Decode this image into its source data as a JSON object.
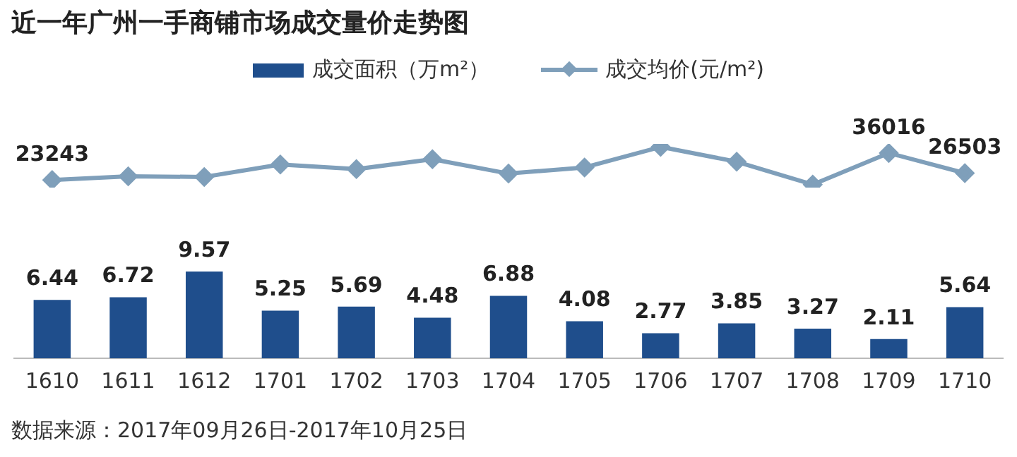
{
  "chart_data": [
    {
      "type": "bar",
      "categories": [
        "1610",
        "1611",
        "1612",
        "1701",
        "1702",
        "1703",
        "1704",
        "1705",
        "1706",
        "1707",
        "1708",
        "1709",
        "1710"
      ],
      "series": [
        {
          "name": "成交面积（万m²）",
          "color": "#1f4e8c",
          "values": [
            6.44,
            6.72,
            9.57,
            5.25,
            5.69,
            4.48,
            6.88,
            4.08,
            2.77,
            3.85,
            3.27,
            2.11,
            5.64
          ]
        }
      ],
      "data_labels": true,
      "legend": "top",
      "grid": false,
      "annotations": [
        "数据来源：2017年09月26日-2017年10月25日"
      ]
    },
    {
      "type": "line",
      "title": "近一年广州一手商铺市场成交量价走势图",
      "categories": [
        null,
        null,
        null,
        null,
        null,
        null,
        null,
        null,
        null,
        null,
        null,
        null,
        null
      ],
      "series": [
        {
          "name": "成交均价(元/m²)",
          "color": "#7f9fba",
          "values": [
            23243,
            25000,
            24700,
            30600,
            28400,
            33100,
            26300,
            29200,
            38900,
            31900,
            21100,
            36016,
            26503
          ],
          "value_labels": [
            "23243",
            null,
            null,
            null,
            null,
            null,
            null,
            null,
            null,
            null,
            null,
            "36016",
            "26503"
          ]
        }
      ],
      "legend": "top",
      "marker": "diamond",
      "grid": false
    }
  ]
}
